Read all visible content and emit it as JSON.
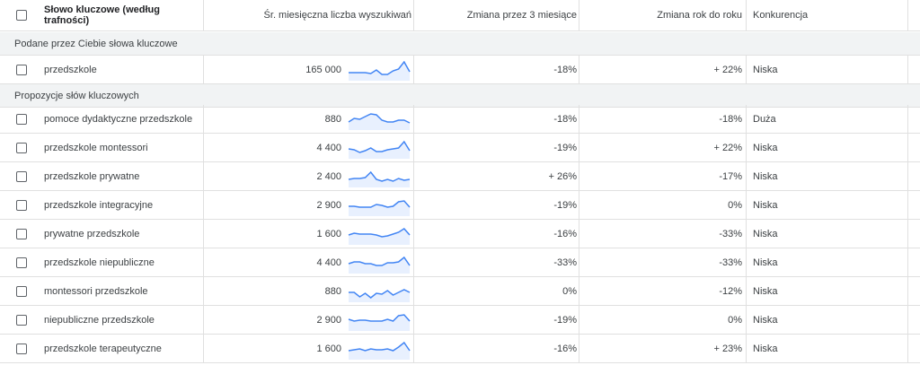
{
  "header": {
    "keyword": "Słowo kluczowe (według trafności)",
    "avg_monthly": "Śr. miesięczna liczba wyszukiwań",
    "change_3m": "Zmiana przez 3 miesiące",
    "change_yoy": "Zmiana rok do roku",
    "competition": "Konkurencja"
  },
  "sections": [
    {
      "title": "Podane przez Ciebie słowa kluczowe",
      "rows": [
        {
          "keyword": "przedszkole",
          "volume": "165 000",
          "change_3m": "-18%",
          "change_yoy": "+ 22%",
          "competition": "Niska",
          "trend": [
            8,
            8,
            8,
            8,
            7,
            11,
            6,
            6,
            10,
            12,
            20,
            9
          ]
        }
      ]
    },
    {
      "title": "Propozycje słów kluczowych",
      "rows": [
        {
          "keyword": "pomoce dydaktyczne przedszkole",
          "volume": "880",
          "change_3m": "-18%",
          "change_yoy": "-18%",
          "competition": "Duża",
          "trend": [
            8,
            12,
            11,
            14,
            17,
            16,
            10,
            8,
            8,
            10,
            10,
            7
          ]
        },
        {
          "keyword": "przedszkole montessori",
          "volume": "4 400",
          "change_3m": "-19%",
          "change_yoy": "+ 22%",
          "competition": "Niska",
          "trend": [
            10,
            9,
            6,
            8,
            11,
            7,
            7,
            9,
            10,
            11,
            18,
            8
          ]
        },
        {
          "keyword": "przedszkole prywatne",
          "volume": "2 400",
          "change_3m": "+ 26%",
          "change_yoy": "-17%",
          "competition": "Niska",
          "trend": [
            8,
            9,
            9,
            10,
            16,
            8,
            6,
            8,
            6,
            9,
            7,
            8
          ]
        },
        {
          "keyword": "przedszkole integracyjne",
          "volume": "2 900",
          "change_3m": "-19%",
          "change_yoy": "0%",
          "competition": "Niska",
          "trend": [
            10,
            10,
            9,
            9,
            9,
            12,
            11,
            9,
            10,
            15,
            16,
            9
          ]
        },
        {
          "keyword": "prywatne przedszkole",
          "volume": "1 600",
          "change_3m": "-16%",
          "change_yoy": "-33%",
          "competition": "Niska",
          "trend": [
            10,
            12,
            11,
            11,
            11,
            10,
            8,
            9,
            11,
            13,
            17,
            10
          ]
        },
        {
          "keyword": "przedszkole niepubliczne",
          "volume": "4 400",
          "change_3m": "-33%",
          "change_yoy": "-33%",
          "competition": "Niska",
          "trend": [
            10,
            12,
            12,
            10,
            10,
            8,
            8,
            11,
            11,
            12,
            17,
            8
          ]
        },
        {
          "keyword": "montessori przedszkole",
          "volume": "880",
          "change_3m": "0%",
          "change_yoy": "-12%",
          "competition": "Niska",
          "trend": [
            10,
            10,
            5,
            9,
            4,
            9,
            8,
            12,
            7,
            10,
            13,
            10
          ]
        },
        {
          "keyword": "niepubliczne przedszkole",
          "volume": "2 900",
          "change_3m": "-19%",
          "change_yoy": "0%",
          "competition": "Niska",
          "trend": [
            12,
            10,
            11,
            11,
            10,
            10,
            10,
            12,
            10,
            16,
            17,
            10
          ]
        },
        {
          "keyword": "przedszkole terapeutyczne",
          "volume": "1 600",
          "change_3m": "-16%",
          "change_yoy": "+ 23%",
          "competition": "Niska",
          "trend": [
            9,
            10,
            11,
            9,
            11,
            10,
            10,
            11,
            9,
            13,
            18,
            9
          ]
        }
      ]
    }
  ],
  "colors": {
    "trend_line": "#4285f4",
    "trend_fill": "#e8f0fe",
    "section_bg": "#f1f3f4"
  }
}
